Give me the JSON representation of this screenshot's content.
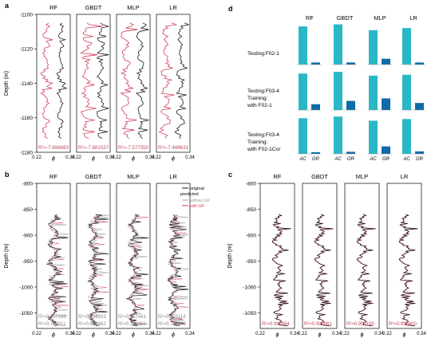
{
  "panels": {
    "a": {
      "letter": "a",
      "ylabel": "Depth (m)",
      "xlabel": "ϕ",
      "xticks": [
        "0.22",
        "0.34"
      ]
    },
    "b": {
      "letter": "b",
      "ylabel": "Depth (m)",
      "xlabel": "ϕ",
      "xticks": [
        "0.22",
        "0.34"
      ]
    },
    "c": {
      "letter": "c",
      "ylabel": "Depth (m)",
      "xlabel": "ϕ",
      "xticks": [
        "0.22",
        "0.34"
      ]
    },
    "d": {
      "letter": "d"
    }
  },
  "colors": {
    "original": "#1a1a1a",
    "predicted": "#d2415c",
    "annotation": "#c0485e",
    "annotation_gray": "#8a8a8a",
    "bar_ac": "#2ab7c6",
    "bar_gr": "#0e6aa8",
    "bar_gr_light": "#2c86c0"
  },
  "legend_b": {
    "original": "original",
    "predicted": "predicted",
    "without_gr": "without GR",
    "with_gr": "with GR"
  },
  "chart_data": [
    {
      "panel": "a",
      "type": "line",
      "models": [
        "RF",
        "GBDT",
        "MLP",
        "LR"
      ],
      "r2": [
        "R²=-7.698883",
        "R²=-7.681537",
        "R²=-7.577350",
        "R²=-7.488631"
      ],
      "ylim": [
        -1180,
        -1100
      ],
      "yticks": [
        -1100,
        -1120,
        -1140,
        -1160,
        -1180
      ],
      "xlim": [
        0.22,
        0.34
      ],
      "series": [
        {
          "name": "original",
          "x": [
            0.31,
            0.33,
            0.31,
            0.3,
            0.32,
            0.33,
            0.31,
            0.29,
            0.31,
            0.33,
            0.31,
            0.3,
            0.32,
            0.31,
            0.29,
            0.31,
            0.32,
            0.3,
            0.31,
            0.33,
            0.3,
            0.29,
            0.31,
            0.32,
            0.3,
            0.31,
            0.29,
            0.3,
            0.31,
            0.3,
            0.31
          ],
          "depth": [
            -1105,
            -1108,
            -1111,
            -1114,
            -1117,
            -1120,
            -1123,
            -1126,
            -1129,
            -1132,
            -1135,
            -1138,
            -1141,
            -1144,
            -1147,
            -1150,
            -1153,
            -1156,
            -1159,
            -1162,
            -1165,
            -1168,
            -1171,
            -1174,
            -1177,
            -1179,
            -1180,
            -1180,
            -1180,
            -1180,
            -1180
          ]
        },
        {
          "name": "predicted",
          "x": [
            0.26,
            0.29,
            0.24,
            0.27,
            0.23,
            0.28,
            0.25,
            0.24,
            0.27,
            0.23,
            0.26,
            0.28,
            0.24,
            0.23,
            0.27,
            0.25,
            0.29,
            0.23,
            0.26,
            0.24,
            0.27,
            0.23,
            0.25,
            0.24,
            0.26,
            0.24,
            0.25,
            0.24,
            0.25,
            0.24,
            0.25
          ],
          "depth": [
            -1105,
            -1108,
            -1111,
            -1114,
            -1117,
            -1120,
            -1123,
            -1126,
            -1129,
            -1132,
            -1135,
            -1138,
            -1141,
            -1144,
            -1147,
            -1150,
            -1153,
            -1156,
            -1159,
            -1162,
            -1165,
            -1168,
            -1171,
            -1174,
            -1177,
            -1179,
            -1180,
            -1180,
            -1180,
            -1180,
            -1180
          ]
        }
      ]
    },
    {
      "panel": "b",
      "type": "line",
      "models": [
        "RF",
        "GBDT",
        "MLP",
        "LR"
      ],
      "r2_without": [
        "R²=0.507186",
        "R²=0.756933",
        "R²=0.727441",
        "R²=0.765114"
      ],
      "r2_with": [
        "R²=0.760911",
        "R²=0.832862",
        "R²=0.746359",
        "R²=0.765140"
      ],
      "ylim": [
        -1080,
        -800
      ],
      "yticks": [
        -800,
        -850,
        -900,
        -950,
        -1000,
        -1050
      ],
      "xlim": [
        0.22,
        0.34
      ]
    },
    {
      "panel": "c",
      "type": "line",
      "models": [
        "RF",
        "GBDT",
        "MLP",
        "LR"
      ],
      "r2": [
        "R²=0.999984",
        "R²=0.999861",
        "R²=0.990195",
        "R²=0.998400"
      ],
      "ylim": [
        -1080,
        -800
      ],
      "yticks": [
        -800,
        -850,
        -900,
        -950,
        -1000,
        -1050
      ],
      "xlim": [
        0.22,
        0.34
      ]
    },
    {
      "panel": "d",
      "type": "bar",
      "models": [
        "RF",
        "GBDT",
        "MLP",
        "LR"
      ],
      "categories": [
        "AC",
        "GR"
      ],
      "rows": [
        {
          "label_lines": [
            "Testing:F02-1"
          ],
          "ac": [
            0.92,
            0.97,
            0.83,
            0.88
          ],
          "gr": [
            0.05,
            0.05,
            0.14,
            0.05
          ]
        },
        {
          "label_lines": [
            "Testing:F03-4",
            "Training:",
            "with F02-1"
          ],
          "ac": [
            0.88,
            0.92,
            0.83,
            0.85
          ],
          "gr": [
            0.14,
            0.22,
            0.28,
            0.17
          ]
        },
        {
          "label_lines": [
            "Testing:F03-4",
            "Training:",
            "with F02-1Cor"
          ],
          "ac": [
            0.86,
            0.9,
            0.8,
            0.84
          ],
          "gr": [
            0.04,
            0.05,
            0.18,
            0.06
          ]
        }
      ]
    }
  ]
}
